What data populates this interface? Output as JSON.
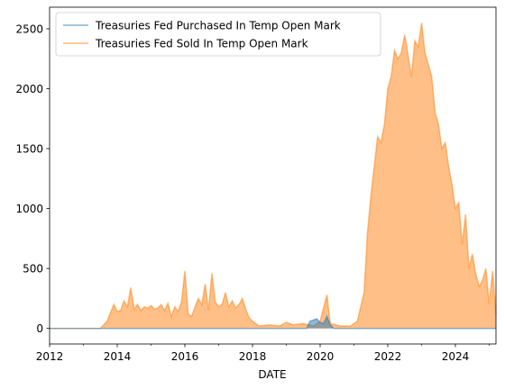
{
  "chart_data": {
    "type": "area",
    "title": "",
    "xlabel": "DATE",
    "ylabel": "",
    "xlim": [
      2012.0,
      2025.2
    ],
    "ylim": [
      -130,
      2680
    ],
    "x_ticks": [
      {
        "value": 2012,
        "label": "2012"
      },
      {
        "value": 2014,
        "label": "2014"
      },
      {
        "value": 2016,
        "label": "2016"
      },
      {
        "value": 2018,
        "label": "2018"
      },
      {
        "value": 2020,
        "label": "2020"
      },
      {
        "value": 2022,
        "label": "2022"
      },
      {
        "value": 2024,
        "label": "2024"
      }
    ],
    "y_ticks": [
      {
        "value": 0,
        "label": "0"
      },
      {
        "value": 500,
        "label": "500"
      },
      {
        "value": 1000,
        "label": "1000"
      },
      {
        "value": 1500,
        "label": "1500"
      },
      {
        "value": 2000,
        "label": "2000"
      },
      {
        "value": 2500,
        "label": "2500"
      }
    ],
    "legend": {
      "position": "top-left"
    },
    "series": [
      {
        "name": "Treasuries Fed Purchased In Temp Open Mark",
        "color": "#1f77b4",
        "x": [
          2012.0,
          2019.6,
          2019.7,
          2019.8,
          2019.9,
          2020.0,
          2020.1,
          2020.2,
          2020.3,
          2020.4,
          2025.2
        ],
        "values": [
          0,
          0,
          60,
          70,
          80,
          50,
          40,
          100,
          30,
          0,
          0
        ]
      },
      {
        "name": "Treasuries Fed Sold In Temp Open Mark",
        "color": "#ff7f0e",
        "x": [
          2012.0,
          2013.5,
          2013.7,
          2013.9,
          2014.0,
          2014.1,
          2014.2,
          2014.3,
          2014.4,
          2014.5,
          2014.6,
          2014.7,
          2014.8,
          2014.9,
          2015.0,
          2015.1,
          2015.2,
          2015.3,
          2015.4,
          2015.5,
          2015.6,
          2015.7,
          2015.8,
          2015.9,
          2016.0,
          2016.1,
          2016.2,
          2016.3,
          2016.4,
          2016.5,
          2016.6,
          2016.7,
          2016.8,
          2016.9,
          2017.0,
          2017.1,
          2017.2,
          2017.3,
          2017.4,
          2017.5,
          2017.6,
          2017.7,
          2017.8,
          2017.9,
          2018.0,
          2018.2,
          2018.5,
          2018.8,
          2019.0,
          2019.2,
          2019.5,
          2019.8,
          2020.0,
          2020.2,
          2020.3,
          2020.6,
          2020.9,
          2021.1,
          2021.3,
          2021.4,
          2021.5,
          2021.6,
          2021.7,
          2021.8,
          2021.9,
          2022.0,
          2022.1,
          2022.2,
          2022.3,
          2022.4,
          2022.5,
          2022.6,
          2022.7,
          2022.8,
          2022.9,
          2023.0,
          2023.1,
          2023.2,
          2023.3,
          2023.4,
          2023.5,
          2023.6,
          2023.7,
          2023.8,
          2023.9,
          2024.0,
          2024.1,
          2024.2,
          2024.3,
          2024.4,
          2024.5,
          2024.6,
          2024.7,
          2024.8,
          2024.9,
          2025.0,
          2025.1,
          2025.2
        ],
        "values": [
          0,
          0,
          60,
          200,
          140,
          150,
          230,
          180,
          340,
          160,
          200,
          150,
          180,
          170,
          190,
          160,
          170,
          200,
          150,
          210,
          100,
          180,
          140,
          220,
          480,
          120,
          100,
          180,
          250,
          200,
          370,
          150,
          460,
          220,
          180,
          200,
          300,
          180,
          230,
          170,
          200,
          250,
          160,
          90,
          60,
          20,
          30,
          20,
          50,
          30,
          40,
          20,
          60,
          280,
          40,
          20,
          20,
          60,
          300,
          800,
          1100,
          1350,
          1600,
          1550,
          1700,
          2000,
          2100,
          2320,
          2250,
          2300,
          2450,
          2280,
          2100,
          2400,
          2350,
          2550,
          2300,
          2200,
          2100,
          1800,
          1700,
          1500,
          1550,
          1350,
          1200,
          1000,
          1050,
          700,
          950,
          500,
          620,
          460,
          350,
          400,
          500,
          200,
          480,
          120
        ]
      }
    ]
  }
}
